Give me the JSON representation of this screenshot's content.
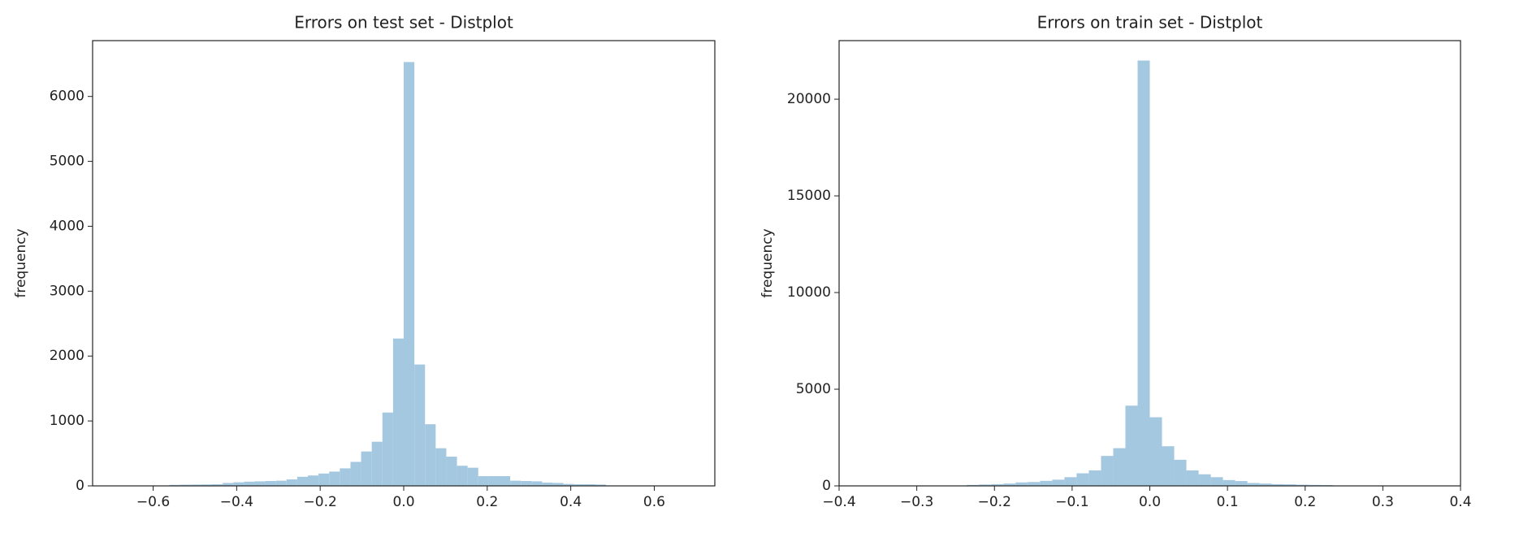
{
  "chart_data": [
    {
      "type": "histogram",
      "title": "Errors on test set - Distplot",
      "ylabel": "frequency",
      "color": "#a5c8e1",
      "grid": false,
      "bins": [
        -0.561,
        -0.5355,
        -0.51,
        -0.4845,
        -0.459,
        -0.4335,
        -0.408,
        -0.3825,
        -0.357,
        -0.3315,
        -0.306,
        -0.2805,
        -0.255,
        -0.2295,
        -0.204,
        -0.1785,
        -0.153,
        -0.1275,
        -0.102,
        -0.0765,
        -0.051,
        -0.0255,
        0,
        0.0255,
        0.051,
        0.0765,
        0.102,
        0.1275,
        0.153,
        0.1785,
        0.204,
        0.2295,
        0.255,
        0.2805,
        0.306,
        0.3315,
        0.357,
        0.3825,
        0.408,
        0.4335,
        0.459,
        0.4845
      ],
      "counts": [
        15,
        18,
        20,
        22,
        25,
        45,
        55,
        65,
        70,
        75,
        80,
        100,
        140,
        160,
        190,
        220,
        270,
        370,
        530,
        680,
        1130,
        2270,
        6530,
        1870,
        950,
        580,
        450,
        310,
        280,
        150,
        150,
        150,
        80,
        75,
        70,
        50,
        45,
        30,
        25,
        25,
        20
      ],
      "xlim": [
        -0.745,
        0.745
      ],
      "ylim": [
        0,
        6860
      ],
      "xticks": [
        {
          "value": -0.6,
          "label": "−0.6"
        },
        {
          "value": -0.4,
          "label": "−0.4"
        },
        {
          "value": -0.2,
          "label": "−0.2"
        },
        {
          "value": 0,
          "label": "0.0"
        },
        0.2,
        0.4,
        0.6
      ],
      "yticks": [
        0,
        1000,
        2000,
        3000,
        4000,
        5000,
        6000
      ]
    },
    {
      "type": "histogram",
      "title": "Errors on train set - Distplot",
      "ylabel": "frequency",
      "color": "#a5c8e1",
      "grid": false,
      "bins": [
        -0.2355,
        -0.2198,
        -0.2041,
        -0.1884,
        -0.1727,
        -0.157,
        -0.1413,
        -0.1256,
        -0.1099,
        -0.0942,
        -0.0785,
        -0.0628,
        -0.0471,
        -0.0314,
        -0.0157,
        0,
        0.0157,
        0.0314,
        0.0471,
        0.0628,
        0.0785,
        0.0942,
        0.1099,
        0.1256,
        0.1413,
        0.157,
        0.1727,
        0.1884,
        0.2041,
        0.2198,
        0.2355
      ],
      "counts": [
        50,
        70,
        90,
        120,
        180,
        200,
        260,
        320,
        450,
        650,
        800,
        1550,
        1950,
        4150,
        22000,
        3550,
        2050,
        1350,
        800,
        600,
        450,
        300,
        250,
        150,
        120,
        90,
        80,
        60,
        50,
        40
      ],
      "xlim": [
        -0.4,
        0.4
      ],
      "ylim": [
        0,
        23030
      ],
      "xticks": [
        {
          "value": -0.4,
          "label": "−0.4"
        },
        {
          "value": -0.3,
          "label": "−0.3"
        },
        {
          "value": -0.2,
          "label": "−0.2"
        },
        {
          "value": -0.1,
          "label": "−0.1"
        },
        {
          "value": 0,
          "label": "0.0"
        },
        0.1,
        0.2,
        0.3,
        0.4
      ],
      "yticks": [
        0,
        5000,
        10000,
        15000,
        20000
      ]
    }
  ]
}
